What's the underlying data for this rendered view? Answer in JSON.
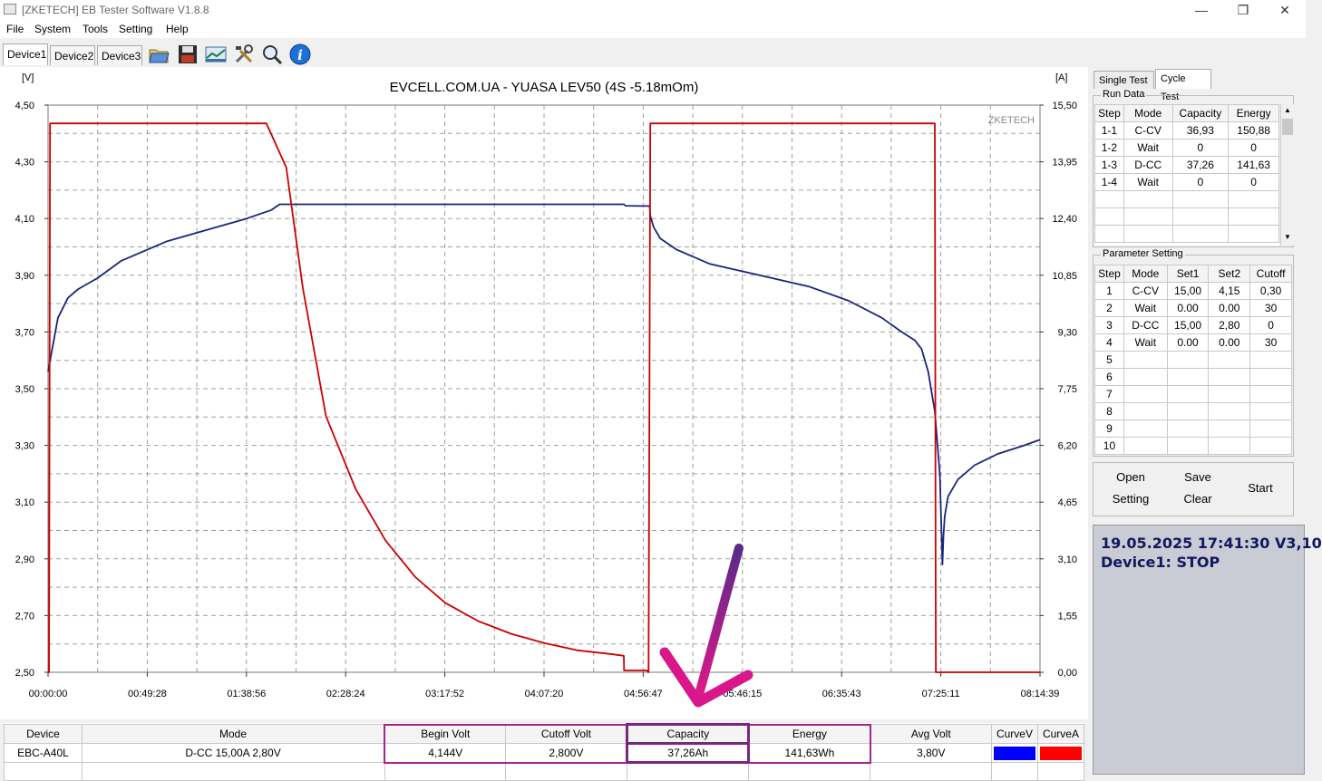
{
  "window": {
    "title": "[ZKETECH] EB Tester Software V1.8.8",
    "controls": {
      "minimize": "—",
      "restore": "❐",
      "close": "✕"
    }
  },
  "menu": [
    "File",
    "System",
    "Tools",
    "Setting",
    "Help"
  ],
  "device_tabs": [
    "Device1",
    "Device2",
    "Device3"
  ],
  "active_device_tab": "Device1",
  "toolbar_icons": [
    "folder-icon",
    "save-icon",
    "chart-image-icon",
    "tools-icon",
    "magnifier-icon",
    "info-icon"
  ],
  "chart": {
    "watermark": "ZKETECH",
    "colors": {
      "voltage": "#1a237e",
      "current": "#cc0000",
      "grid": "#a0a0a0"
    }
  },
  "chart_data": {
    "type": "line",
    "title": "EVCELL.COM.UA - YUASA LEV50 (4S -5.18mOm)",
    "ylabel_left": "[V]",
    "ylabel_right": "[A]",
    "ylim_left": [
      2.5,
      4.5
    ],
    "ylim_right": [
      0,
      15.5
    ],
    "xlim": [
      0,
      29979
    ],
    "x_tick_labels": [
      "00:00:00",
      "00:49:28",
      "01:38:56",
      "02:28:24",
      "03:17:52",
      "04:07:20",
      "04:56:47",
      "05:46:15",
      "06:35:43",
      "07:25:11",
      "08:14:39"
    ],
    "y_left_tick_labels": [
      "4,50",
      "4,30",
      "4,10",
      "3,90",
      "3,70",
      "3,50",
      "3,30",
      "3,10",
      "2,90",
      "2,70",
      "2,50"
    ],
    "y_right_tick_labels": [
      "15,50",
      "13,95",
      "12,40",
      "10,85",
      "9,30",
      "7,75",
      "6,20",
      "4,65",
      "3,10",
      "1,55",
      "0,00"
    ],
    "grid": true,
    "series": [
      {
        "name": "CurveV",
        "axis": "left",
        "x": [
          0,
          30,
          300,
          600,
          900,
          1500,
          2200,
          3000,
          3600,
          4200,
          4800,
          5400,
          6000,
          6750,
          7000,
          8000,
          10000,
          12000,
          14000,
          16000,
          17400,
          17450,
          18000,
          18100,
          18180,
          18200,
          18300,
          18500,
          19000,
          20000,
          21500,
          23000,
          24200,
          25200,
          25800,
          26200,
          26400,
          26600,
          26800,
          26950,
          27030,
          27060,
          27100,
          27200,
          27500,
          28000,
          28700,
          29500,
          29979
        ],
        "y": [
          3.56,
          3.58,
          3.75,
          3.82,
          3.85,
          3.89,
          3.95,
          3.99,
          4.02,
          4.04,
          4.06,
          4.08,
          4.1,
          4.13,
          4.15,
          4.15,
          4.15,
          4.15,
          4.15,
          4.15,
          4.15,
          4.145,
          4.144,
          4.144,
          4.144,
          4.11,
          4.07,
          4.03,
          3.99,
          3.94,
          3.9,
          3.86,
          3.81,
          3.75,
          3.7,
          3.67,
          3.64,
          3.56,
          3.42,
          3.2,
          2.88,
          2.98,
          3.05,
          3.12,
          3.18,
          3.23,
          3.27,
          3.3,
          3.32
        ]
      },
      {
        "name": "CurveA",
        "axis": "right",
        "x": [
          0,
          30,
          60,
          6600,
          7200,
          7700,
          8400,
          9300,
          10200,
          11100,
          12000,
          13000,
          14000,
          15000,
          16000,
          17000,
          17400,
          17410,
          18100,
          18150,
          18200,
          26800,
          26830,
          26860,
          29979
        ],
        "y": [
          0,
          0,
          15,
          15,
          13.8,
          10.5,
          7.0,
          5.0,
          3.6,
          2.6,
          1.9,
          1.4,
          1.05,
          0.8,
          0.6,
          0.5,
          0.45,
          0.05,
          0.05,
          0,
          15,
          15,
          0,
          0,
          0
        ]
      }
    ]
  },
  "right_panel": {
    "tabs": [
      "Single Test",
      "Cycle Test"
    ],
    "active_tab": "Cycle Test",
    "run_data": {
      "label": "Run Data",
      "columns": [
        "Step",
        "Mode",
        "Capacity",
        "Energy"
      ],
      "rows": [
        [
          "1-1",
          "C-CV",
          "36,93",
          "150,88"
        ],
        [
          "1-2",
          "Wait",
          "0",
          "0"
        ],
        [
          "1-3",
          "D-CC",
          "37,26",
          "141,63"
        ],
        [
          "1-4",
          "Wait",
          "0",
          "0"
        ]
      ],
      "scroll_up": "▲",
      "scroll_down": "▼"
    },
    "parameter_setting": {
      "label": "Parameter Setting",
      "columns": [
        "Step",
        "Mode",
        "Set1",
        "Set2",
        "Cutoff"
      ],
      "rows": [
        [
          "1",
          "C-CV",
          "15,00",
          "4,15",
          "0,30"
        ],
        [
          "2",
          "Wait",
          "0.00",
          "0.00",
          "30"
        ],
        [
          "3",
          "D-CC",
          "15,00",
          "2,80",
          "0"
        ],
        [
          "4",
          "Wait",
          "0.00",
          "0.00",
          "30"
        ],
        [
          "5",
          "",
          "",
          "",
          ""
        ],
        [
          "6",
          "",
          "",
          "",
          ""
        ],
        [
          "7",
          "",
          "",
          "",
          ""
        ],
        [
          "8",
          "",
          "",
          "",
          ""
        ],
        [
          "9",
          "",
          "",
          "",
          ""
        ],
        [
          "10",
          "",
          "",
          "",
          ""
        ]
      ]
    },
    "buttons": {
      "open": "Open",
      "save": "Save",
      "start": "Start",
      "setting": "Setting",
      "clear": "Clear"
    },
    "status": {
      "datetime": "19.05.2025 17:41:30  V3,10",
      "device_state": "Device1: STOP"
    }
  },
  "summary_table": {
    "headers": [
      "Device",
      "Mode",
      "Begin Volt",
      "Cutoff Volt",
      "Capacity",
      "Energy",
      "Avg Volt",
      "CurveV",
      "CurveA"
    ],
    "values": [
      "EBC-A40L",
      "D-CC 15,00A  2,80V",
      "4,144V",
      "2,800V",
      "37,26Ah",
      "141,63Wh",
      "3,80V"
    ],
    "curve_colors": {
      "voltage": "#0000ff",
      "current": "#ff0000"
    }
  }
}
